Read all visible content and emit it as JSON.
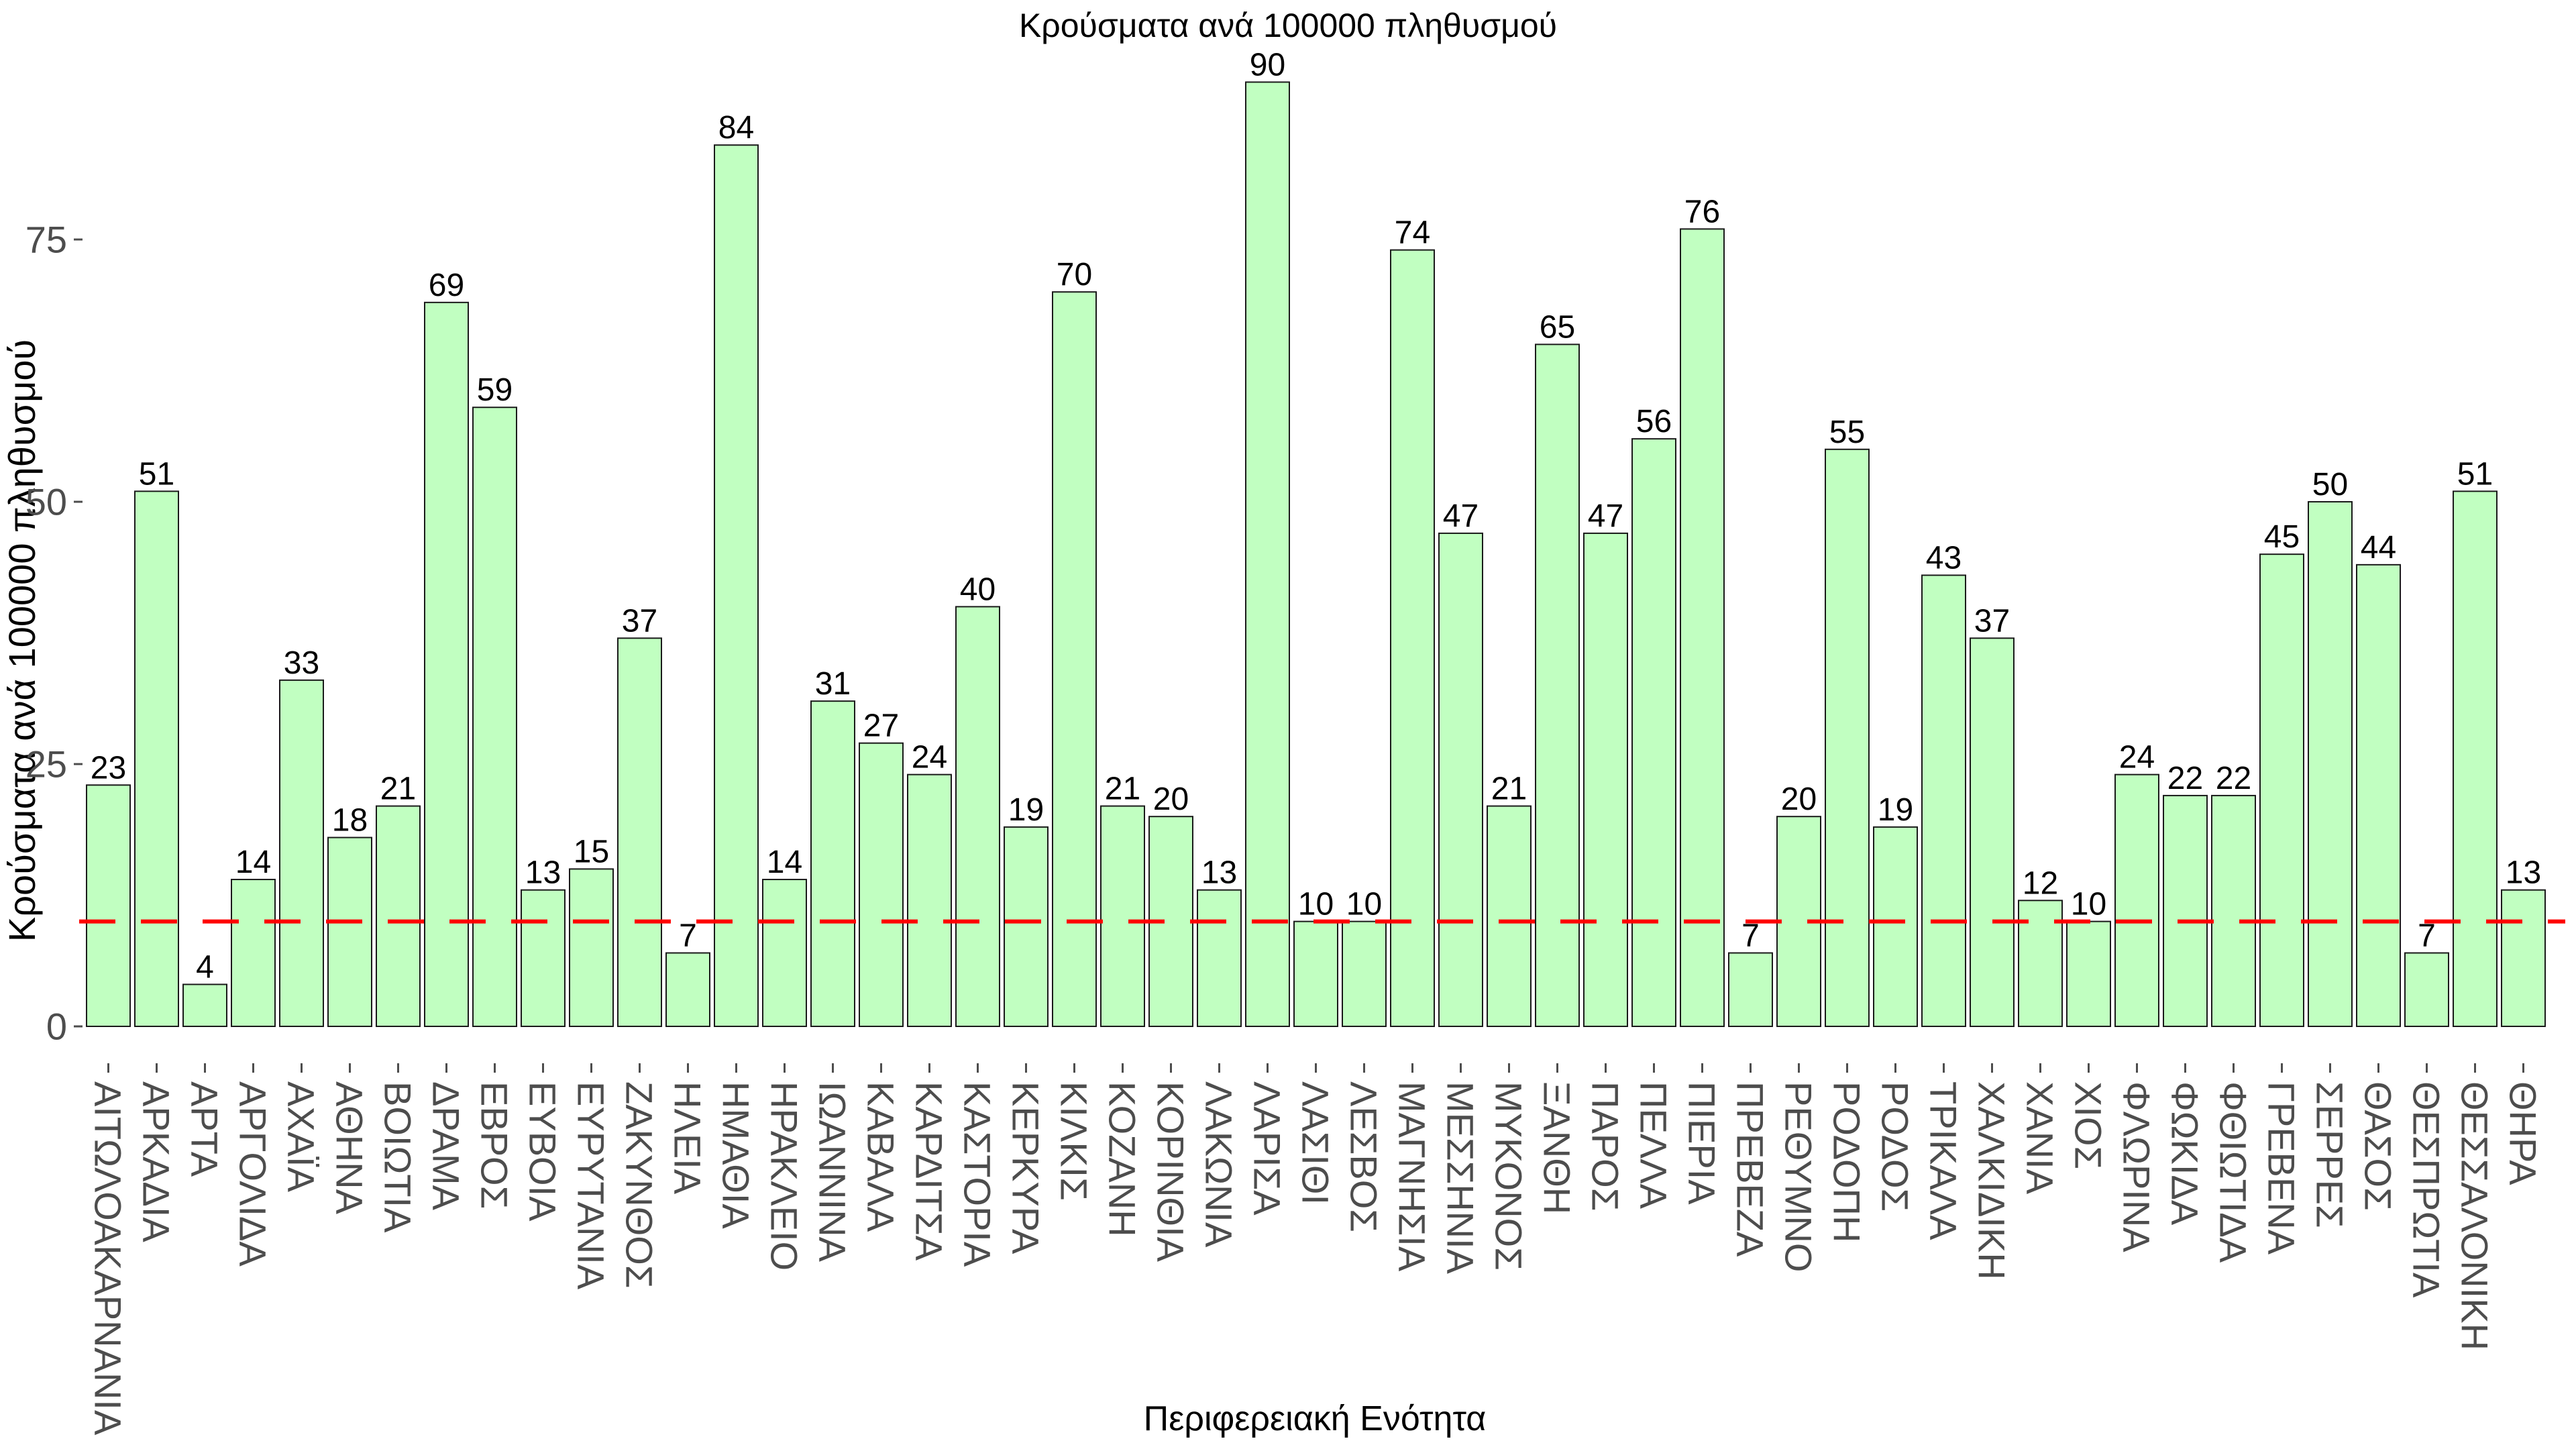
{
  "chart_data": {
    "type": "bar",
    "title": "Κρούσματα ανά 100000 πληθυσμού",
    "xlabel": "Περιφερειακή Ενότητα",
    "ylabel": "Κρούσματα ανά 100000 πληθυσμού",
    "categories": [
      "ΑΙΤΩΛΟΑΚΑΡΝΑΝΙΑ",
      "ΑΡΚΑΔΙΑ",
      "ΑΡΤΑ",
      "ΑΡΓΟΛΙΔΑ",
      "ΑΧΑΪΑ",
      "ΑΘΗΝΑ",
      "ΒΟΙΩΤΙΑ",
      "ΔΡΑΜΑ",
      "ΕΒΡΟΣ",
      "ΕΥΒΟΙΑ",
      "ΕΥΡΥΤΑΝΙΑ",
      "ΖΑΚΥΝΘΟΣ",
      "ΗΛΕΙΑ",
      "ΗΜΑΘΙΑ",
      "ΗΡΑΚΛΕΙΟ",
      "ΙΩΑΝΝΙΝΑ",
      "ΚΑΒΑΛΑ",
      "ΚΑΡΔΙΤΣΑ",
      "ΚΑΣΤΟΡΙΑ",
      "ΚΕΡΚΥΡΑ",
      "ΚΙΛΚΙΣ",
      "ΚΟΖΑΝΗ",
      "ΚΟΡΙΝΘΙΑ",
      "ΛΑΚΩΝΙΑ",
      "ΛΑΡΙΣΑ",
      "ΛΑΣΙΘΙ",
      "ΛΕΣΒΟΣ",
      "ΜΑΓΝΗΣΙΑ",
      "ΜΕΣΣΗΝΙΑ",
      "ΜΥΚΟΝΟΣ",
      "ΞΑΝΘΗ",
      "ΠΑΡΟΣ",
      "ΠΕΛΛΑ",
      "ΠΙΕΡΙΑ",
      "ΠΡΕΒΕΖΑ",
      "ΡΕΘΥΜΝΟ",
      "ΡΟΔΟΠΗ",
      "ΡΟΔΟΣ",
      "ΤΡΙΚΑΛΑ",
      "ΧΑΛΚΙΔΙΚΗ",
      "ΧΑΝΙΑ",
      "ΧΙΟΣ",
      "ΦΛΩΡΙΝΑ",
      "ΦΩΚΙΔΑ",
      "ΦΘΙΩΤΙΔΑ",
      "ΓΡΕΒΕΝΑ",
      "ΣΕΡΡΕΣ",
      "ΘΑΣΟΣ",
      "ΘΕΣΠΡΩΤΙΑ",
      "ΘΕΣΣΑΛΟΝΙΚΗ",
      "ΘΗΡΑ"
    ],
    "values": [
      23,
      51,
      4,
      14,
      33,
      18,
      21,
      69,
      59,
      13,
      15,
      37,
      7,
      84,
      14,
      31,
      27,
      24,
      40,
      19,
      70,
      21,
      20,
      13,
      90,
      10,
      10,
      74,
      47,
      21,
      65,
      47,
      56,
      76,
      7,
      20,
      55,
      19,
      43,
      37,
      12,
      10,
      24,
      22,
      22,
      45,
      50,
      44,
      7,
      51,
      13
    ],
    "bar_labels_shown": true,
    "yticks": [
      0,
      25,
      50,
      75
    ],
    "ylim": [
      0,
      93
    ],
    "grid": false,
    "legend": null,
    "threshold_line": {
      "y": 10,
      "style": "dashed",
      "color": "#FF0000"
    },
    "colors": {
      "bar_fill": "#C1FFC1",
      "bar_stroke": "#1A1A1A",
      "axis_text": "#4D4D4D",
      "label_text": "#000000",
      "background": "#FFFFFF"
    }
  }
}
